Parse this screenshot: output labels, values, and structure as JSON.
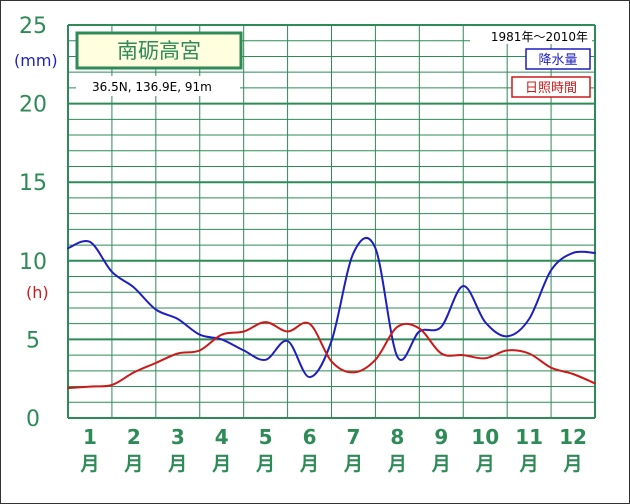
{
  "station": {
    "name": "南砺高宮",
    "coords": "36.5N,  136.9E,  91m",
    "period": "1981年～2010年"
  },
  "legend": [
    {
      "label": "降水量",
      "color": "#1f1fbf"
    },
    {
      "label": "日照時間",
      "color": "#cc1a1a"
    }
  ],
  "axes": {
    "y_unit_precip": "(mm)",
    "y_unit_sun": "(h)",
    "y_ticks": [
      "0",
      "5",
      "10",
      "15",
      "20",
      "25"
    ],
    "month_suffix": "月"
  },
  "chart_data": {
    "type": "line",
    "categories": [
      "1",
      "2",
      "3",
      "4",
      "5",
      "6",
      "7",
      "8",
      "9",
      "10",
      "11",
      "12"
    ],
    "ylim": [
      0,
      25
    ],
    "grid": true,
    "series": [
      {
        "name": "降水量",
        "unit": "mm",
        "color": "#1f1fbf",
        "x": [
          0.0,
          0.5,
          1.0,
          1.5,
          2.0,
          2.5,
          3.0,
          3.5,
          4.0,
          4.5,
          5.0,
          5.5,
          6.0,
          6.5,
          7.0,
          7.5,
          8.0,
          8.5,
          9.0,
          9.5,
          10.0,
          10.5,
          11.0,
          11.5,
          12.0
        ],
        "values": [
          10.8,
          11.2,
          9.3,
          8.3,
          6.9,
          6.3,
          5.3,
          5.0,
          4.3,
          3.7,
          4.9,
          2.6,
          4.9,
          10.5,
          10.8,
          3.9,
          5.5,
          5.8,
          8.4,
          6.1,
          5.2,
          6.3,
          9.4,
          10.5,
          10.5
        ]
      },
      {
        "name": "日照時間",
        "unit": "h",
        "color": "#cc1a1a",
        "x": [
          0.0,
          0.5,
          1.0,
          1.5,
          2.0,
          2.5,
          3.0,
          3.5,
          4.0,
          4.5,
          5.0,
          5.5,
          6.0,
          6.5,
          7.0,
          7.5,
          8.0,
          8.5,
          9.0,
          9.5,
          10.0,
          10.5,
          11.0,
          11.5,
          12.0
        ],
        "values": [
          1.9,
          2.0,
          2.1,
          2.9,
          3.5,
          4.1,
          4.3,
          5.3,
          5.5,
          6.1,
          5.5,
          6.0,
          3.6,
          2.9,
          3.7,
          5.8,
          5.7,
          4.1,
          4.0,
          3.8,
          4.3,
          4.1,
          3.2,
          2.8,
          2.2
        ]
      }
    ]
  }
}
